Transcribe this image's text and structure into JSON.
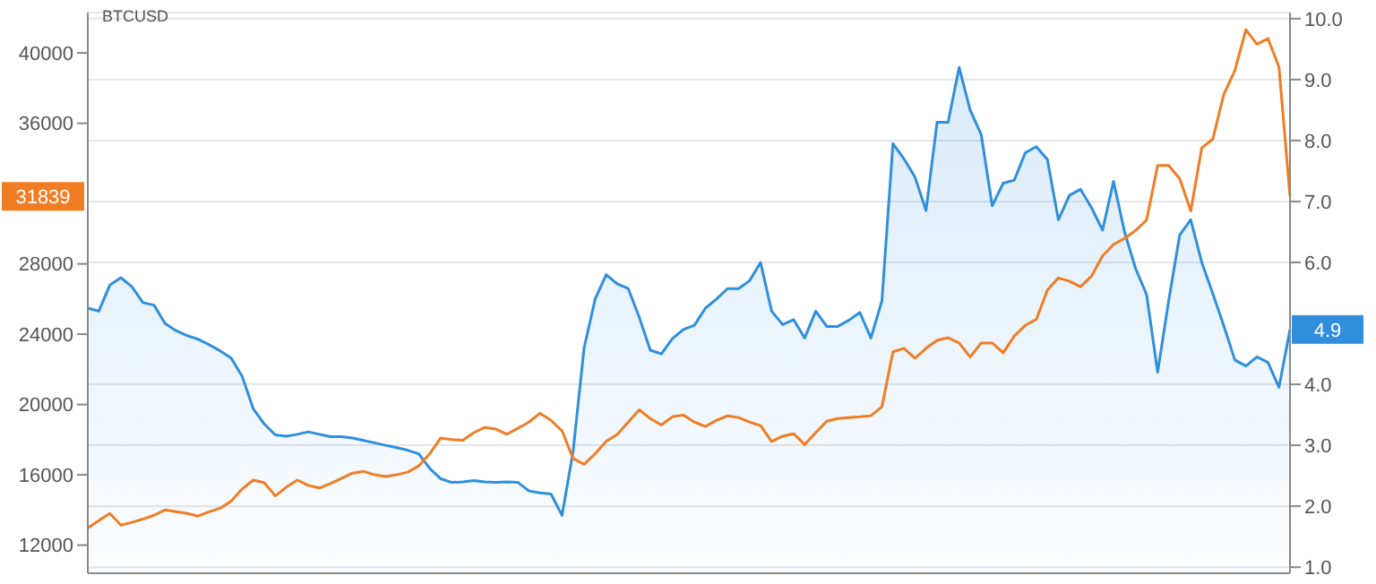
{
  "chart_data": {
    "type": "line",
    "title": "BTCUSD",
    "categories": [
      null,
      null,
      null,
      null,
      null,
      null,
      null,
      null,
      null,
      null,
      null,
      null,
      null,
      null,
      null,
      null,
      null,
      null,
      null,
      null,
      null,
      null,
      null,
      null,
      null,
      null,
      null,
      null,
      null,
      null,
      null,
      null,
      null,
      null,
      null,
      null,
      null,
      null,
      null,
      null,
      null,
      null,
      null,
      null,
      null,
      null,
      null,
      null,
      null,
      null,
      null,
      null,
      null,
      null,
      null,
      null,
      null,
      null,
      null,
      null,
      null,
      null,
      null,
      null,
      null,
      null,
      null,
      null,
      null,
      null,
      null,
      null,
      null,
      null,
      null,
      null,
      null,
      null,
      null,
      null,
      null,
      null,
      null,
      null,
      null,
      null,
      null,
      null,
      null,
      null,
      null,
      null,
      null,
      null,
      null,
      null,
      null,
      null,
      null,
      null,
      null,
      null,
      null,
      null,
      null,
      null,
      null,
      null,
      null,
      null
    ],
    "series": [
      {
        "type": "area",
        "axis": "y2",
        "color": "#2f8fdd",
        "values": [
          5.25,
          5.2,
          5.63,
          5.75,
          5.6,
          5.34,
          5.3,
          5.0,
          4.88,
          4.8,
          4.74,
          4.65,
          4.55,
          4.43,
          4.13,
          3.6,
          3.35,
          3.17,
          3.15,
          3.18,
          3.22,
          3.18,
          3.14,
          3.14,
          3.12,
          3.08,
          3.04,
          3.0,
          2.96,
          2.92,
          2.86,
          2.62,
          2.45,
          2.39,
          2.4,
          2.42,
          2.4,
          2.39,
          2.4,
          2.39,
          2.25,
          2.22,
          2.2,
          1.85,
          2.9,
          4.6,
          5.4,
          5.8,
          5.65,
          5.57,
          5.1,
          4.56,
          4.5,
          4.75,
          4.9,
          4.97,
          5.25,
          5.4,
          5.57,
          5.57,
          5.7,
          6.0,
          5.2,
          4.98,
          5.06,
          4.76,
          5.2,
          4.95,
          4.95,
          5.05,
          5.18,
          4.76,
          5.37,
          7.95,
          7.7,
          7.4,
          6.85,
          8.3,
          8.3,
          9.2,
          8.5,
          8.1,
          6.93,
          7.3,
          7.35,
          7.8,
          7.9,
          7.69,
          6.7,
          7.1,
          7.2,
          6.9,
          6.53,
          7.33,
          6.5,
          5.9,
          5.47,
          4.2,
          5.37,
          6.45,
          6.7,
          6.0,
          5.49,
          4.96,
          4.4,
          4.3,
          4.45,
          4.36,
          3.95,
          4.9
        ]
      },
      {
        "axis": "y",
        "color": "#f07d24",
        "values": [
          12970,
          13400,
          13800,
          13140,
          13300,
          13480,
          13700,
          14000,
          13900,
          13800,
          13650,
          13900,
          14100,
          14500,
          15200,
          15700,
          15550,
          14800,
          15300,
          15700,
          15400,
          15250,
          15500,
          15800,
          16100,
          16200,
          16000,
          15900,
          16000,
          16150,
          16500,
          17200,
          18100,
          18000,
          17970,
          18400,
          18700,
          18600,
          18310,
          18650,
          19000,
          19500,
          19100,
          18500,
          16930,
          16600,
          17200,
          17900,
          18300,
          19000,
          19700,
          19200,
          18830,
          19300,
          19400,
          19000,
          18750,
          19100,
          19360,
          19260,
          19000,
          18800,
          17900,
          18200,
          18340,
          17720,
          18400,
          19050,
          19200,
          19260,
          19300,
          19360,
          19870,
          23000,
          23200,
          22630,
          23200,
          23650,
          23800,
          23500,
          22700,
          23500,
          23500,
          22940,
          23900,
          24500,
          24850,
          26500,
          27200,
          27020,
          26700,
          27300,
          28450,
          29100,
          29450,
          29900,
          30500,
          33600,
          33600,
          32850,
          31010,
          34600,
          35100,
          37650,
          39000,
          41330,
          40500,
          40820,
          39200,
          31839
        ]
      }
    ],
    "ylim": [
      10400,
      42300
    ],
    "yticks": [
      12000,
      16000,
      20000,
      24000,
      28000,
      36000,
      40000
    ],
    "y2lim": [
      0.9,
      10.1
    ],
    "y2ticks": [
      {
        "value": 1,
        "label": "1.0"
      },
      {
        "value": 2,
        "label": "2.0"
      },
      {
        "value": 3,
        "label": "3.0"
      },
      {
        "value": 4,
        "label": "4.0"
      },
      {
        "value": 6,
        "label": "6.0"
      },
      {
        "value": 7,
        "label": "7.0"
      },
      {
        "value": 8,
        "label": "8.0"
      },
      {
        "value": 9,
        "label": "9.0"
      },
      {
        "value": 10,
        "label": "10.0"
      }
    ],
    "annotations": [
      "4.9",
      "31839"
    ],
    "grid": "y",
    "marker": "none",
    "line_style": "solid",
    "legend": false
  }
}
